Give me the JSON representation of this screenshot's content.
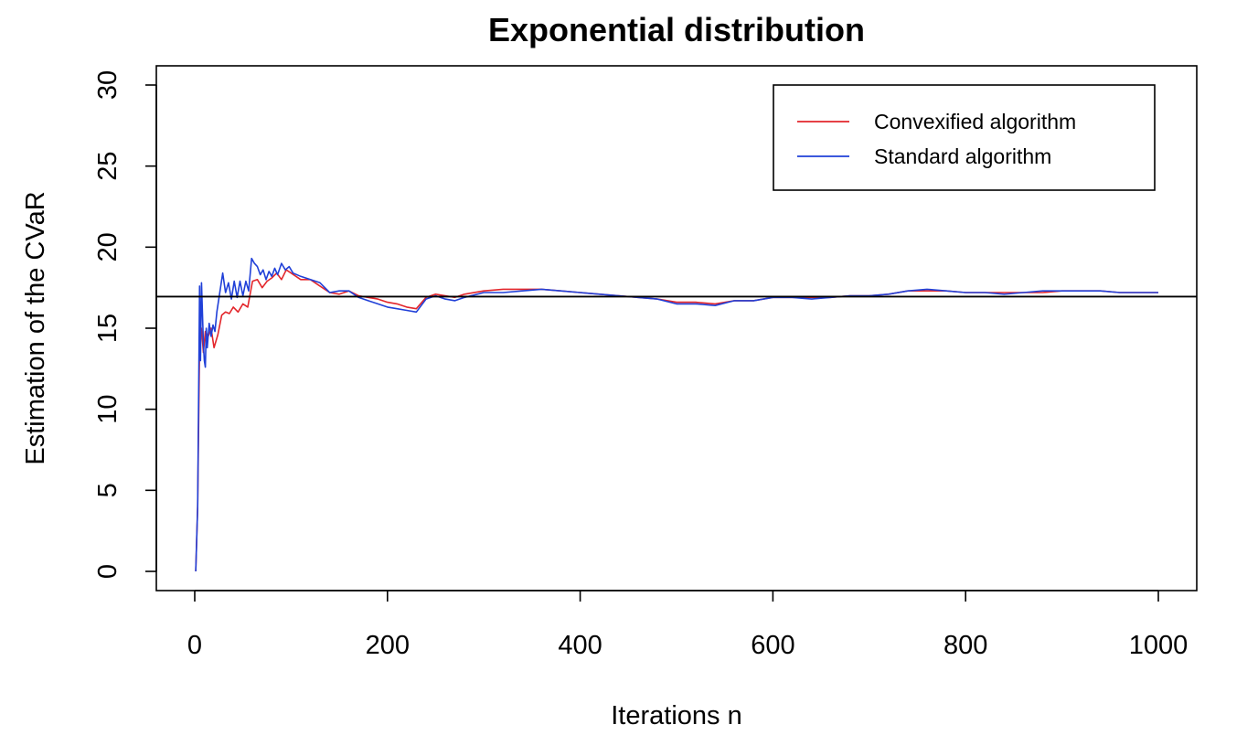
{
  "chart_data": {
    "type": "line",
    "title": "Exponential distribution",
    "xlabel": "Iterations n",
    "ylabel": "Estimation of the CVaR",
    "xlim": [
      0,
      1000
    ],
    "ylim": [
      0,
      30
    ],
    "x_ticks": [
      "0",
      "200",
      "400",
      "600",
      "800",
      "1000"
    ],
    "y_ticks": [
      "0",
      "5",
      "10",
      "15",
      "20",
      "25",
      "30"
    ],
    "grid": false,
    "legend_position": "top-right",
    "reference_line": {
      "y": 16.95,
      "color": "#000000"
    },
    "series": [
      {
        "name": "Convexified algorithm",
        "color": "#e3262b",
        "x": [
          1,
          3,
          5,
          7,
          9,
          11,
          14,
          17,
          20,
          24,
          28,
          32,
          36,
          40,
          45,
          50,
          55,
          60,
          65,
          70,
          75,
          80,
          85,
          90,
          95,
          100,
          110,
          120,
          130,
          140,
          150,
          160,
          170,
          180,
          190,
          200,
          210,
          220,
          230,
          240,
          250,
          260,
          270,
          280,
          300,
          320,
          340,
          360,
          380,
          400,
          420,
          440,
          460,
          480,
          500,
          520,
          540,
          560,
          580,
          600,
          620,
          640,
          660,
          680,
          700,
          720,
          740,
          760,
          780,
          800,
          820,
          840,
          860,
          880,
          900,
          920,
          940,
          960,
          980,
          1000
        ],
        "y": [
          0.0,
          4.0,
          14.0,
          15.0,
          13.5,
          14.8,
          14.5,
          15.0,
          13.8,
          14.6,
          15.8,
          16.0,
          15.9,
          16.3,
          16.0,
          16.5,
          16.3,
          17.9,
          18.0,
          17.5,
          17.9,
          18.1,
          18.4,
          18.0,
          18.6,
          18.4,
          18.0,
          18.0,
          17.6,
          17.2,
          17.1,
          17.3,
          17.0,
          16.9,
          16.8,
          16.6,
          16.5,
          16.3,
          16.2,
          16.9,
          17.1,
          17.0,
          16.9,
          17.1,
          17.3,
          17.4,
          17.4,
          17.4,
          17.3,
          17.2,
          17.1,
          17.0,
          16.9,
          16.8,
          16.6,
          16.6,
          16.5,
          16.7,
          16.7,
          16.9,
          16.9,
          16.9,
          16.9,
          17.0,
          17.0,
          17.1,
          17.3,
          17.3,
          17.3,
          17.2,
          17.2,
          17.2,
          17.2,
          17.2,
          17.3,
          17.3,
          17.3,
          17.2,
          17.2,
          17.2
        ]
      },
      {
        "name": "Standard algorithm",
        "color": "#2040d8",
        "x": [
          1,
          3,
          5,
          6,
          7,
          8,
          9,
          10,
          11,
          12,
          13,
          15,
          17,
          19,
          21,
          23,
          26,
          29,
          32,
          35,
          38,
          41,
          44,
          47,
          50,
          53,
          56,
          59,
          62,
          65,
          68,
          71,
          74,
          77,
          80,
          83,
          86,
          90,
          94,
          98,
          102,
          110,
          120,
          130,
          140,
          150,
          160,
          170,
          180,
          190,
          200,
          210,
          220,
          230,
          240,
          250,
          260,
          270,
          280,
          300,
          320,
          340,
          360,
          380,
          400,
          420,
          440,
          460,
          480,
          500,
          520,
          540,
          560,
          580,
          600,
          620,
          640,
          660,
          680,
          700,
          720,
          740,
          760,
          780,
          800,
          820,
          840,
          860,
          880,
          900,
          920,
          940,
          960,
          980,
          1000
        ],
        "y": [
          0.0,
          4.0,
          17.6,
          13.0,
          17.8,
          16.0,
          14.0,
          13.0,
          12.6,
          15.0,
          13.8,
          15.3,
          14.5,
          15.2,
          14.8,
          16.0,
          17.2,
          18.4,
          17.2,
          17.8,
          16.8,
          17.9,
          16.9,
          17.9,
          17.0,
          17.9,
          17.3,
          19.3,
          19.0,
          18.8,
          18.3,
          18.6,
          18.0,
          18.5,
          18.2,
          18.7,
          18.3,
          19.0,
          18.6,
          18.8,
          18.4,
          18.2,
          18.0,
          17.8,
          17.2,
          17.3,
          17.3,
          16.9,
          16.7,
          16.5,
          16.3,
          16.2,
          16.1,
          16.0,
          16.8,
          17.0,
          16.8,
          16.7,
          16.9,
          17.2,
          17.2,
          17.3,
          17.4,
          17.3,
          17.2,
          17.1,
          17.0,
          16.9,
          16.8,
          16.5,
          16.5,
          16.4,
          16.7,
          16.7,
          16.9,
          16.9,
          16.8,
          16.9,
          17.0,
          17.0,
          17.1,
          17.3,
          17.4,
          17.3,
          17.2,
          17.2,
          17.1,
          17.2,
          17.3,
          17.3,
          17.3,
          17.3,
          17.2,
          17.2,
          17.2
        ]
      }
    ]
  }
}
